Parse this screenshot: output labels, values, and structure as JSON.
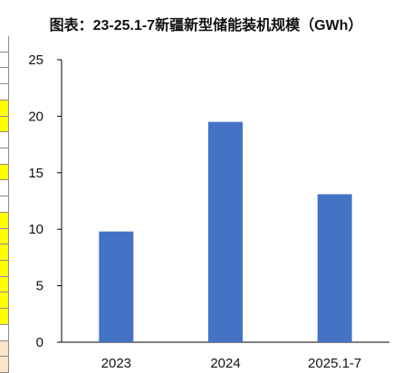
{
  "title": "图表：23-25.1-7新疆新型储能装机规模（GWh）",
  "colors": {
    "bar": "#4472C4",
    "axis": "#000000",
    "strip_highlight": "#FFFF00",
    "strip_plain": "#FFFFFF",
    "strip_tan": "#FCE4C8"
  },
  "chart_data": {
    "type": "bar",
    "title": "图表：23-25.1-7新疆新型储能装机规模（GWh）",
    "categories": [
      "2023",
      "2024",
      "2025.1-7"
    ],
    "values": [
      9.8,
      19.5,
      13.1
    ],
    "xlabel": "",
    "ylabel": "",
    "ylim": [
      0,
      25
    ],
    "yticks": [
      0,
      5,
      10,
      15,
      20,
      25
    ],
    "grid": false,
    "legend": "none"
  },
  "left_strip": {
    "cells": [
      "plain",
      "plain",
      "plain",
      "plain",
      "highlight",
      "highlight",
      "plain",
      "plain",
      "highlight",
      "plain",
      "plain",
      "highlight",
      "highlight",
      "highlight",
      "highlight",
      "highlight",
      "highlight",
      "highlight",
      "plain",
      "tan",
      "tan"
    ]
  }
}
